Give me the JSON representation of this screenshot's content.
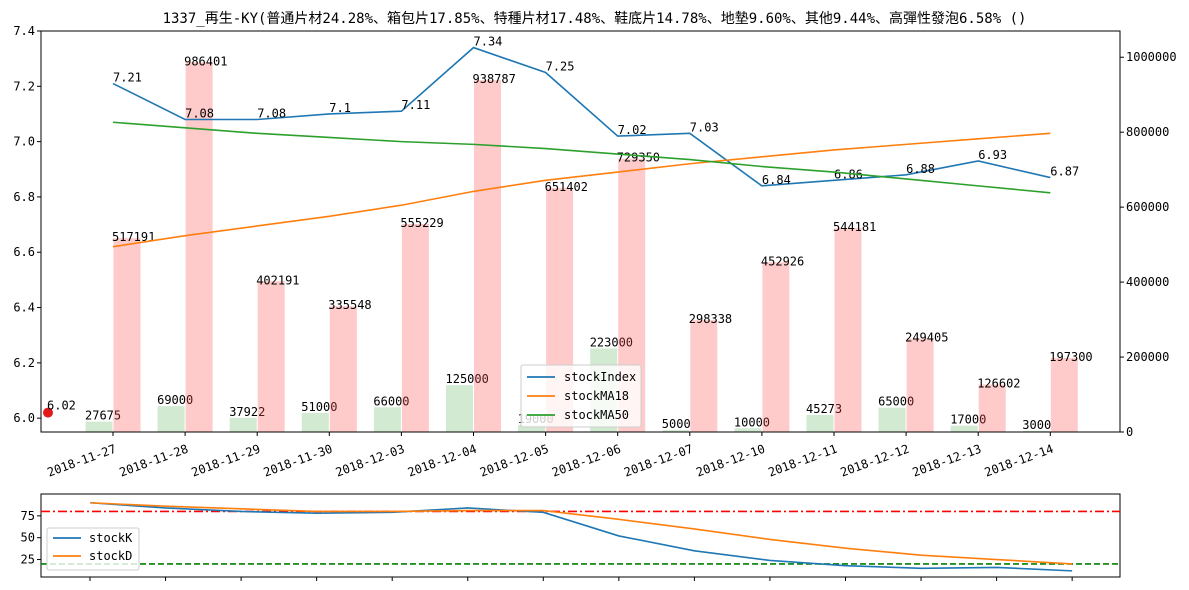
{
  "title": "1337_再生-KY(普通片材24.28%、箱包片17.85%、特種片材17.48%、鞋底片14.78%、地墊9.60%、其他9.44%、高彈性發泡6.58% ()",
  "chart_data": [
    {
      "type": "bar+line",
      "title": "1337_再生-KY(普通片材24.28%、箱包片17.85%、特種片材17.48%、鞋底片14.78%、地墊9.60%、其他9.44%、高彈性發泡6.58% ()",
      "categories": [
        "2018-11-27",
        "2018-11-28",
        "2018-11-29",
        "2018-11-30",
        "2018-12-03",
        "2018-12-04",
        "2018-12-05",
        "2018-12-06",
        "2018-12-07",
        "2018-12-10",
        "2018-12-11",
        "2018-12-12",
        "2018-12-13",
        "2018-12-14"
      ],
      "ylim_left": [
        5.95,
        7.4
      ],
      "yticks_left": [
        6.0,
        6.2,
        6.4,
        6.6,
        6.8,
        7.0,
        7.2,
        7.4
      ],
      "ylim_right": [
        0,
        1070000
      ],
      "yticks_right": [
        0,
        200000,
        400000,
        600000,
        800000,
        1000000
      ],
      "volume_red": [
        517191,
        986401,
        402191,
        335548,
        555229,
        938787,
        651402,
        729350,
        298338,
        452926,
        544181,
        249405,
        126602,
        197300
      ],
      "volume_green": [
        27675,
        69000,
        37922,
        51000,
        66000,
        125000,
        19000,
        223000,
        5000,
        10000,
        45273,
        65000,
        17000,
        3000
      ],
      "series": [
        {
          "name": "stockIndex",
          "color": "#1f77b4",
          "values": [
            7.21,
            7.08,
            7.08,
            7.1,
            7.11,
            7.34,
            7.25,
            7.02,
            7.03,
            6.84,
            6.86,
            6.88,
            6.93,
            6.87
          ],
          "labels": [
            "7.21",
            "7.08",
            "7.08",
            "7.1",
            "7.11",
            "7.34",
            "7.25",
            "7.02",
            "7.03",
            "6.84",
            "6.86",
            "6.88",
            "6.93",
            "6.87"
          ]
        },
        {
          "name": "stockMA18",
          "color": "#ff7f0e",
          "values": [
            6.62,
            6.66,
            6.695,
            6.73,
            6.77,
            6.82,
            6.86,
            6.89,
            6.92,
            6.945,
            6.97,
            6.99,
            7.01,
            7.03
          ]
        },
        {
          "name": "stockMA50",
          "color": "#2ca02c",
          "values": [
            7.07,
            7.05,
            7.03,
            7.015,
            7.0,
            6.99,
            6.975,
            6.955,
            6.935,
            6.91,
            6.89,
            6.865,
            6.84,
            6.815
          ]
        }
      ],
      "marker": {
        "value": 6.02,
        "label": "6.02",
        "color": "#e31a1c"
      },
      "legend": "bottom-center"
    },
    {
      "type": "line",
      "ylim": [
        5,
        100
      ],
      "yticks": [
        25,
        50,
        75
      ],
      "series": [
        {
          "name": "stockK",
          "color": "#1f77b4",
          "values": [
            90,
            84,
            80,
            78,
            79,
            84,
            79,
            52,
            35,
            24,
            18,
            15,
            16,
            12
          ]
        },
        {
          "name": "stockD",
          "color": "#ff7f0e",
          "values": [
            90,
            86,
            83,
            80,
            80,
            81,
            81,
            71,
            60,
            48,
            38,
            30,
            25,
            20
          ]
        }
      ],
      "hlines": [
        {
          "value": 80,
          "color": "#ff0000",
          "style": "dashdot"
        },
        {
          "value": 20,
          "color": "#008000",
          "style": "dashed"
        }
      ],
      "legend": "center-left"
    }
  ]
}
